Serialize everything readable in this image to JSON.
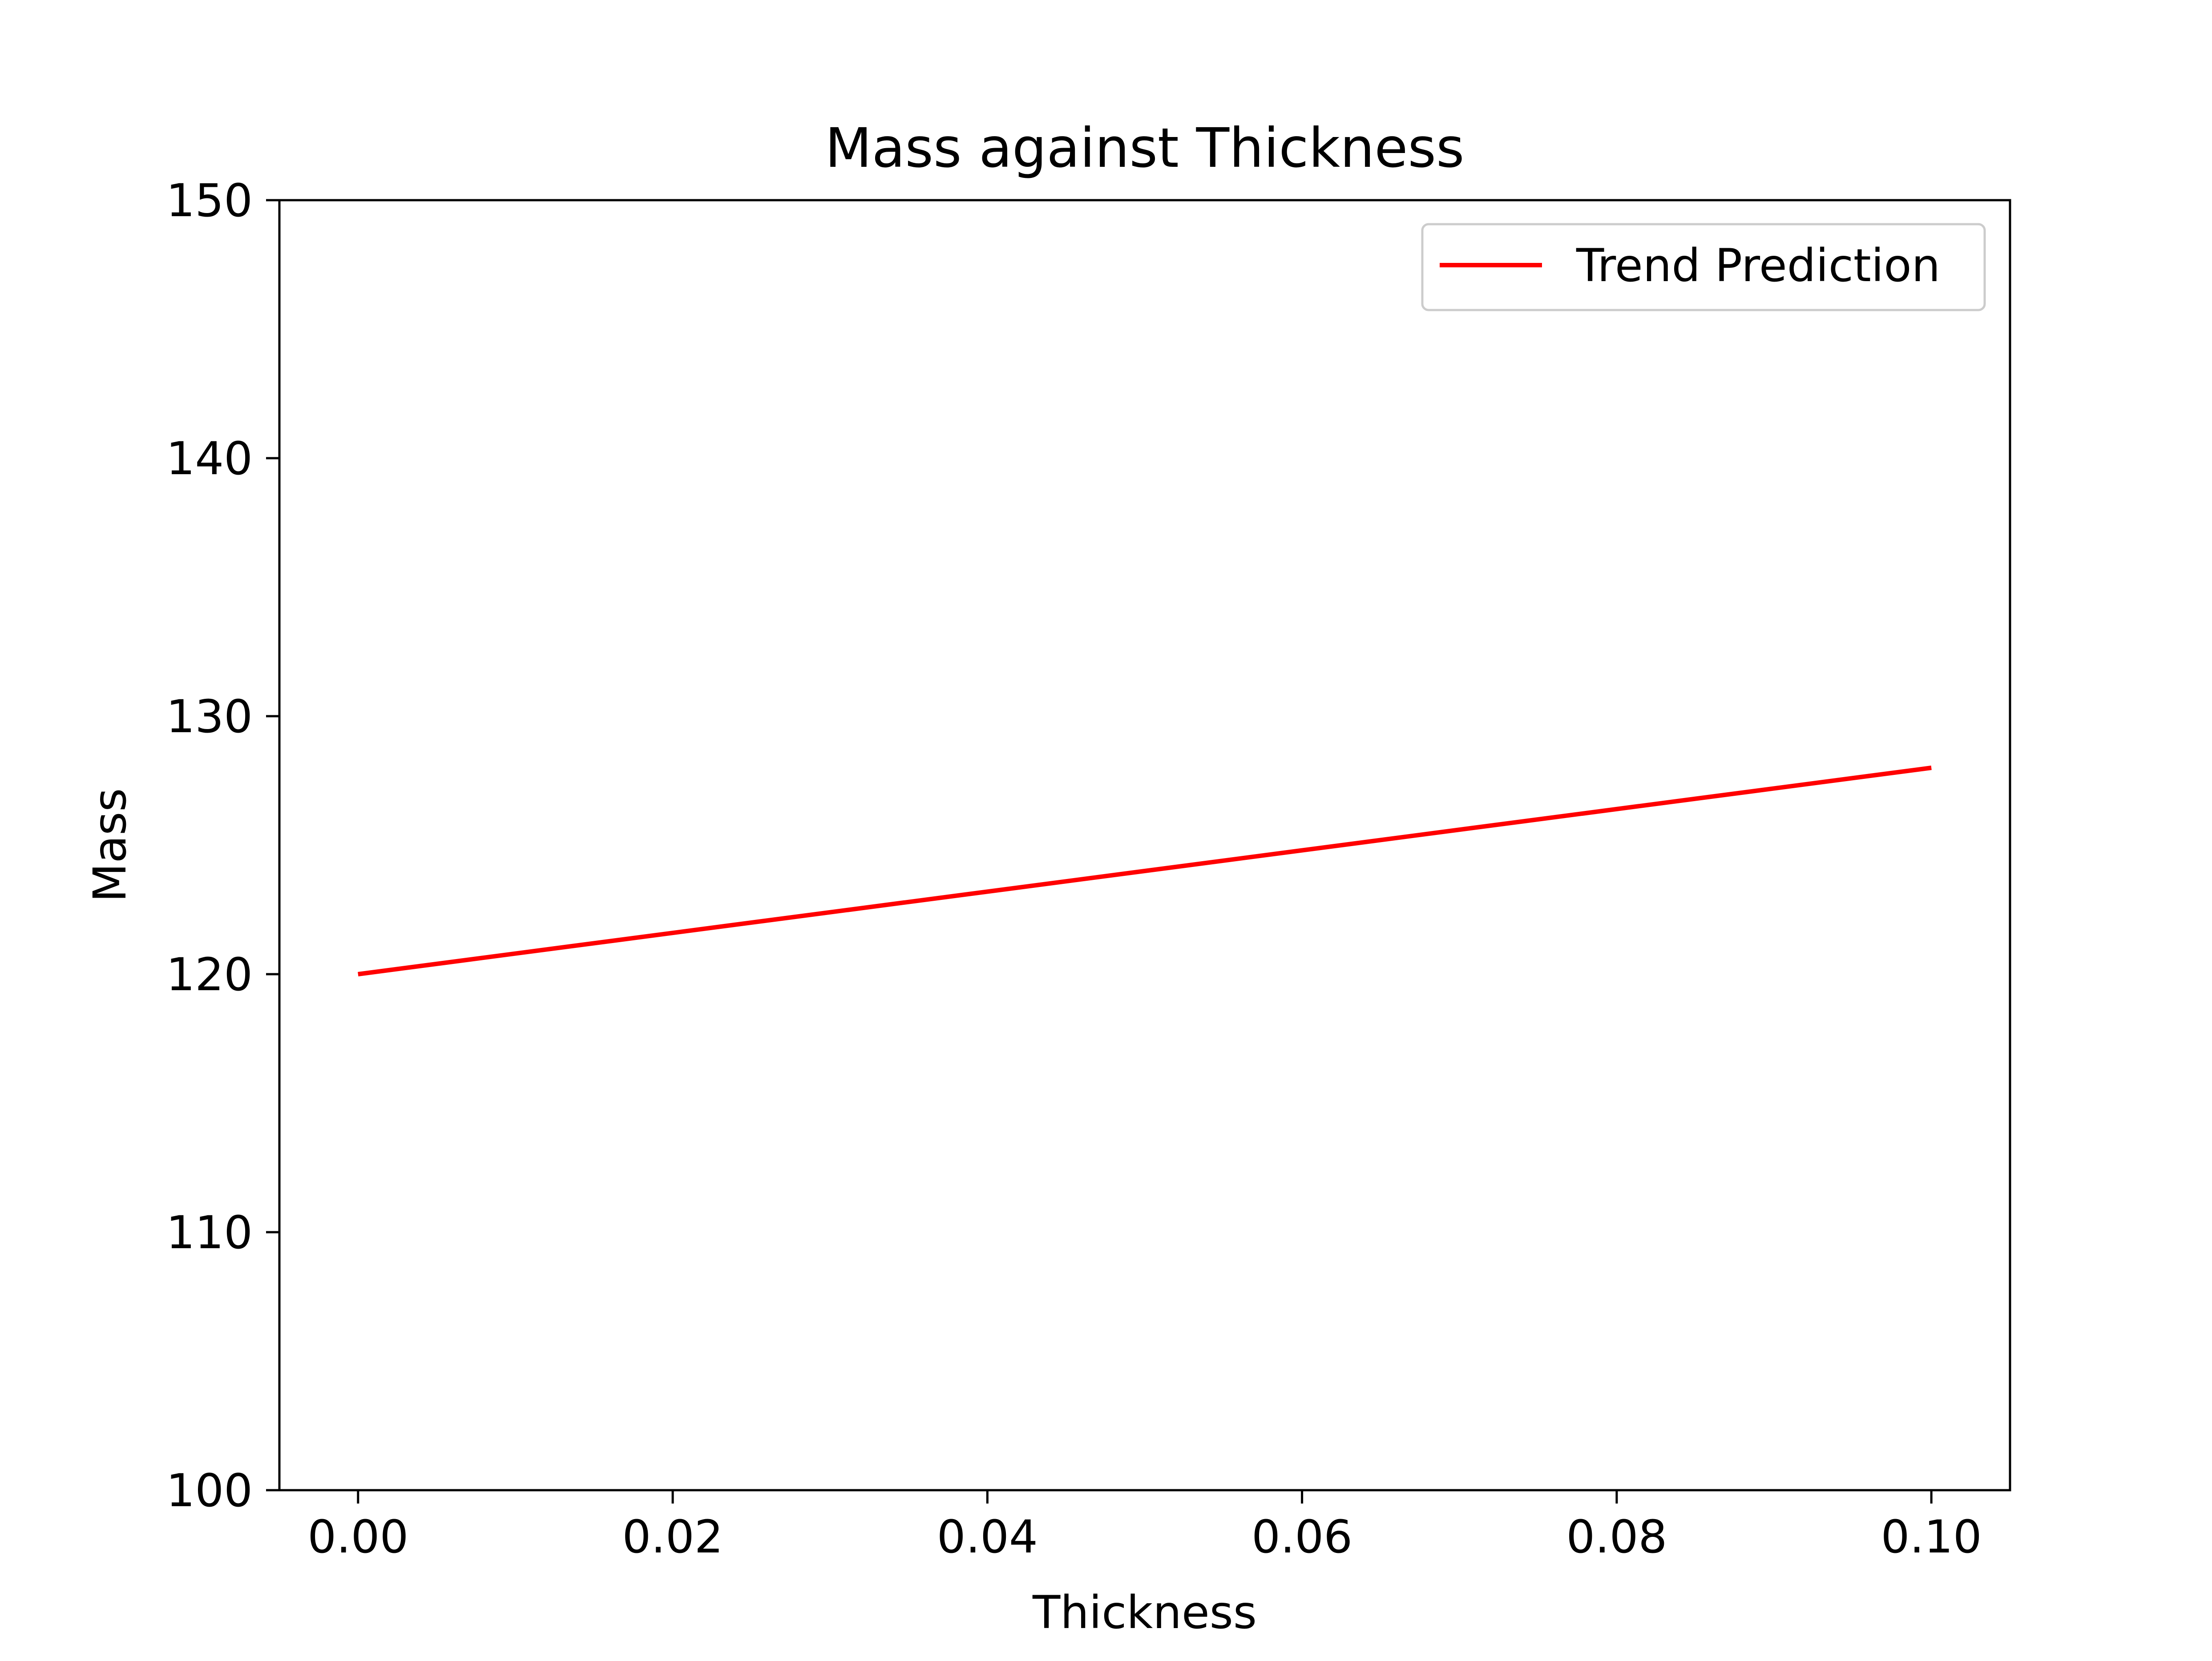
{
  "chart_data": {
    "type": "line",
    "title": "Mass against Thickness",
    "xlabel": "Thickness",
    "ylabel": "Mass",
    "xlim": [
      -0.005,
      0.105
    ],
    "ylim": [
      100,
      150
    ],
    "x_ticks": [
      0.0,
      0.02,
      0.04,
      0.06,
      0.08,
      0.1
    ],
    "x_tick_labels": [
      "0.00",
      "0.02",
      "0.04",
      "0.06",
      "0.08",
      "0.10"
    ],
    "y_ticks": [
      100,
      110,
      120,
      130,
      140,
      150
    ],
    "y_tick_labels": [
      "100",
      "110",
      "120",
      "130",
      "140",
      "150"
    ],
    "grid": false,
    "legend_position": "upper right",
    "series": [
      {
        "name": "Trend Prediction",
        "color": "#ff0000",
        "x": [
          0.0,
          0.1
        ],
        "y": [
          120.0,
          128.0
        ]
      }
    ]
  }
}
